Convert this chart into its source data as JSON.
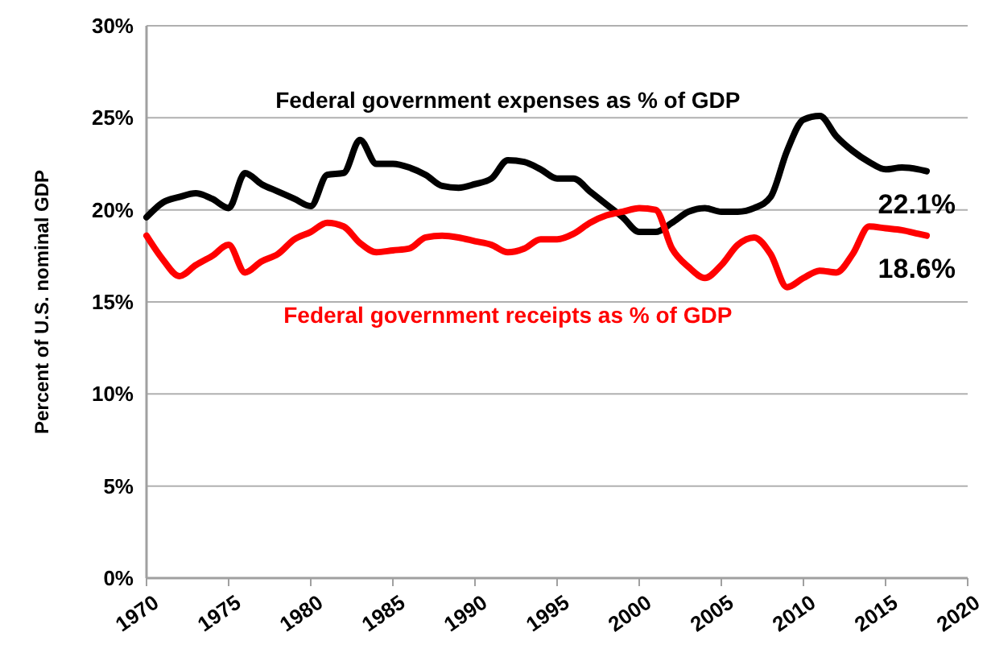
{
  "chart_data": {
    "type": "line",
    "ylabel": "Percent of U.S. nominal GDP",
    "xlim": [
      1970,
      2020
    ],
    "xticks": [
      1970,
      1975,
      1980,
      1985,
      1990,
      1995,
      2000,
      2005,
      2010,
      2015,
      2020
    ],
    "ylim": [
      0,
      30
    ],
    "yticks": [
      {
        "value": 0,
        "label": "0%"
      },
      {
        "value": 5,
        "label": "5%"
      },
      {
        "value": 10,
        "label": "10%"
      },
      {
        "value": 15,
        "label": "15%"
      },
      {
        "value": 20,
        "label": "20%"
      },
      {
        "value": 25,
        "label": "25%"
      },
      {
        "value": 30,
        "label": "30%"
      }
    ],
    "grid": "y",
    "marker": "none",
    "line_style": "solid",
    "x": [
      1970,
      1971,
      1972,
      1973,
      1974,
      1975,
      1976,
      1977,
      1978,
      1979,
      1980,
      1981,
      1982,
      1983,
      1984,
      1985,
      1986,
      1987,
      1988,
      1989,
      1990,
      1991,
      1992,
      1993,
      1994,
      1995,
      1996,
      1997,
      1998,
      1999,
      2000,
      2001,
      2002,
      2003,
      2004,
      2005,
      2006,
      2007,
      2008,
      2009,
      2010,
      2011,
      2012,
      2013,
      2014,
      2015,
      2016,
      2017,
      2017.5
    ],
    "series": [
      {
        "name": "Federal government expenses as % of GDP",
        "color": "#000000",
        "values": [
          19.6,
          20.4,
          20.7,
          20.9,
          20.6,
          20.1,
          22.0,
          21.4,
          21.0,
          20.6,
          20.2,
          21.9,
          22.0,
          23.8,
          22.5,
          22.5,
          22.3,
          21.9,
          21.3,
          21.2,
          21.4,
          21.7,
          22.7,
          22.6,
          22.2,
          21.7,
          21.7,
          21.0,
          20.3,
          19.6,
          18.8,
          18.8,
          19.3,
          19.9,
          20.1,
          19.9,
          19.9,
          20.1,
          20.7,
          23.2,
          24.9,
          25.1,
          24.0,
          23.2,
          22.6,
          22.2,
          22.3,
          22.2,
          22.1
        ]
      },
      {
        "name": "Federal government receipts as % of GDP",
        "color": "#ff0000",
        "values": [
          18.6,
          17.3,
          16.4,
          17.0,
          17.5,
          18.1,
          16.6,
          17.2,
          17.6,
          18.4,
          18.8,
          19.3,
          19.1,
          18.2,
          17.7,
          17.8,
          17.9,
          18.5,
          18.6,
          18.5,
          18.3,
          18.1,
          17.7,
          17.9,
          18.4,
          18.4,
          18.7,
          19.3,
          19.7,
          19.9,
          20.1,
          20.0,
          17.9,
          16.9,
          16.3,
          17.0,
          18.1,
          18.5,
          17.6,
          15.8,
          16.3,
          16.7,
          16.6,
          17.6,
          19.1,
          19.0,
          18.9,
          18.7,
          18.6
        ]
      }
    ],
    "annotations": [
      {
        "text": "22.1%",
        "x": 2017.5,
        "y": 22.1
      },
      {
        "text": "18.6%",
        "x": 2017.5,
        "y": 18.6
      }
    ]
  }
}
